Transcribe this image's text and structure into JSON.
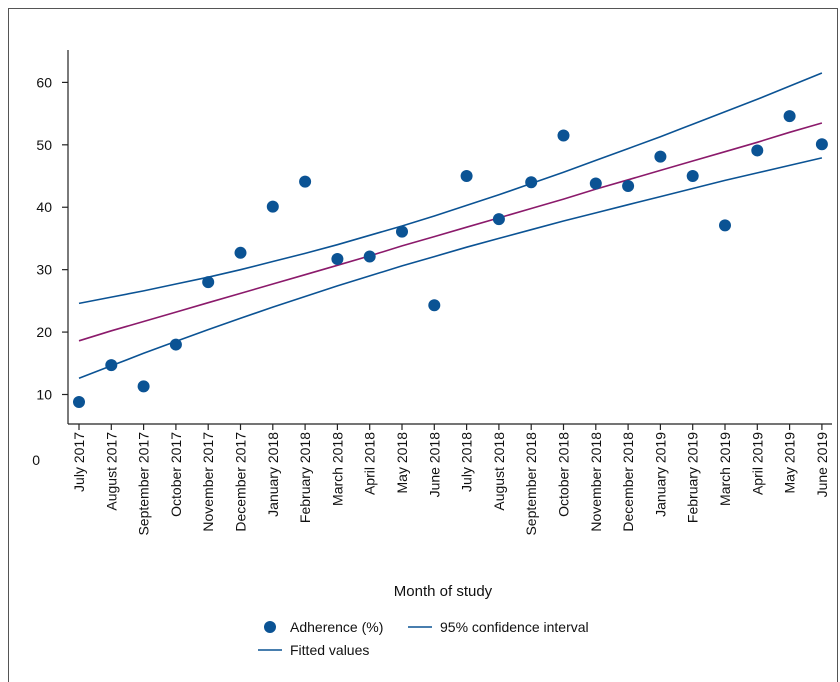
{
  "chart_data": {
    "type": "scatter",
    "title": "",
    "xlabel": "Month of study",
    "ylabel": "",
    "categories": [
      "July 2017",
      "August 2017",
      "September 2017",
      "October 2017",
      "November 2017",
      "December 2017",
      "January 2018",
      "February 2018",
      "March 2018",
      "April 2018",
      "May 2018",
      "June 2018",
      "July 2018",
      "August 2018",
      "September 2018",
      "October 2018",
      "November 2018",
      "December 2018",
      "January 2019",
      "February 2019",
      "March 2019",
      "April 2019",
      "May 2019",
      "June 2019"
    ],
    "ylim": [
      0,
      65
    ],
    "yticks": [
      10,
      20,
      30,
      40,
      50,
      60
    ],
    "y_origin_label": "0",
    "grid": false,
    "series": [
      {
        "name": "Adherence (%)",
        "kind": "scatter",
        "color": "#0b5394",
        "values": [
          8.8,
          14.7,
          11.3,
          18.0,
          28.0,
          32.7,
          40.1,
          44.1,
          31.7,
          32.1,
          36.1,
          24.3,
          45.0,
          38.1,
          44.0,
          51.5,
          43.8,
          43.4,
          48.1,
          45.0,
          37.1,
          49.1,
          54.6,
          50.1
        ]
      },
      {
        "name": "95% confidence interval",
        "kind": "line",
        "color": "#0b5394",
        "values": [
          24.6,
          25.6,
          26.6,
          27.7,
          28.8,
          30.0,
          31.3,
          32.6,
          34.0,
          35.5,
          37.0,
          38.6,
          40.3,
          42.0,
          43.8,
          45.6,
          47.5,
          49.4,
          51.3,
          53.3,
          55.3,
          57.3,
          59.4,
          61.5
        ]
      },
      {
        "name": "95% confidence interval (lower)",
        "kind": "line",
        "color": "#0b5394",
        "values": [
          12.6,
          14.6,
          16.6,
          18.5,
          20.4,
          22.2,
          24.0,
          25.7,
          27.4,
          29.0,
          30.6,
          32.1,
          33.6,
          35.0,
          36.4,
          37.8,
          39.1,
          40.4,
          41.7,
          43.0,
          44.3,
          45.5,
          46.7,
          47.9
        ]
      },
      {
        "name": "Fitted values",
        "kind": "line",
        "color": "#8b1a6b",
        "values": [
          18.6,
          20.2,
          21.7,
          23.2,
          24.7,
          26.2,
          27.7,
          29.2,
          30.7,
          32.2,
          33.8,
          35.3,
          36.8,
          38.3,
          39.8,
          41.3,
          42.9,
          44.4,
          45.9,
          47.4,
          48.9,
          50.4,
          52.0,
          53.5
        ]
      }
    ],
    "legend": {
      "position": "bottom",
      "items": [
        {
          "label": "Adherence (%)",
          "marker": "dot",
          "color": "#0b5394"
        },
        {
          "label": "95% confidence interval",
          "marker": "line",
          "color": "#0b5394"
        },
        {
          "label": "Fitted values",
          "marker": "line",
          "color": "#0b5394"
        }
      ]
    }
  }
}
